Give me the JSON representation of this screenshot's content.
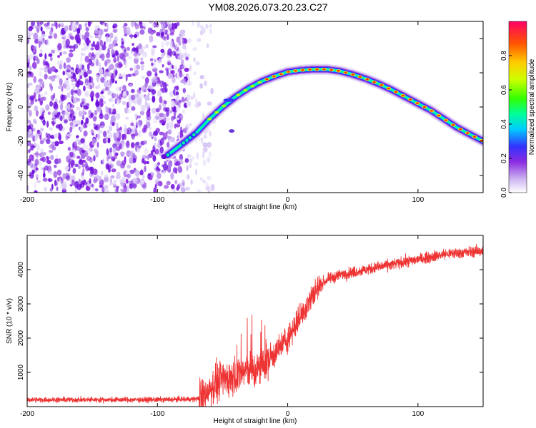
{
  "title": "YM08.2026.073.20.23.C27",
  "chart_data": [
    {
      "type": "heatmap",
      "name": "spectrogram",
      "xlabel": "Height of straight line (km)",
      "ylabel": "Frequency (Hz)",
      "xlim": [
        -200,
        150
      ],
      "ylim": [
        -50,
        50
      ],
      "x_ticks": [
        -200,
        -100,
        0,
        100
      ],
      "y_ticks": [
        -40,
        -20,
        0,
        20,
        40
      ],
      "noise_region_x": [
        -200,
        -68
      ],
      "ridge": {
        "x": [
          -92,
          -80,
          -70,
          -60,
          -50,
          -40,
          -30,
          -20,
          -10,
          0,
          10,
          20,
          30,
          40,
          50,
          60,
          70,
          80,
          90,
          100,
          110,
          120,
          130,
          140,
          150
        ],
        "y": [
          -28,
          -21,
          -15,
          -7,
          0,
          6,
          11,
          15,
          18,
          20.5,
          21.5,
          22,
          22,
          21,
          19,
          16.5,
          13.5,
          10,
          6,
          2,
          -2,
          -7,
          -12,
          -16,
          -20
        ]
      },
      "colorbar": {
        "label": "Normalized spectral amplitude",
        "range": [
          0,
          1
        ],
        "ticks": [
          0.0,
          0.2,
          0.4,
          0.6,
          0.8
        ]
      }
    },
    {
      "type": "line",
      "name": "snr",
      "xlabel": "Height of straight line (km)",
      "ylabel": "SNR (10 * v/v)",
      "xlim": [
        -200,
        150
      ],
      "ylim": [
        0,
        5000
      ],
      "x_ticks": [
        -200,
        -100,
        0,
        100
      ],
      "y_ticks": [
        1000,
        2000,
        3000,
        4000
      ],
      "color": "#ee3333",
      "trend": {
        "x": [
          -200,
          -150,
          -100,
          -70,
          -65,
          -60,
          -50,
          -40,
          -30,
          -25,
          -20,
          -10,
          0,
          10,
          20,
          25,
          30,
          40,
          60,
          80,
          100,
          120,
          150
        ],
        "y": [
          200,
          200,
          200,
          220,
          300,
          550,
          800,
          900,
          1100,
          1000,
          1200,
          1550,
          2000,
          2650,
          3300,
          3550,
          3700,
          3850,
          4000,
          4150,
          4300,
          4450,
          4550
        ]
      }
    }
  ]
}
